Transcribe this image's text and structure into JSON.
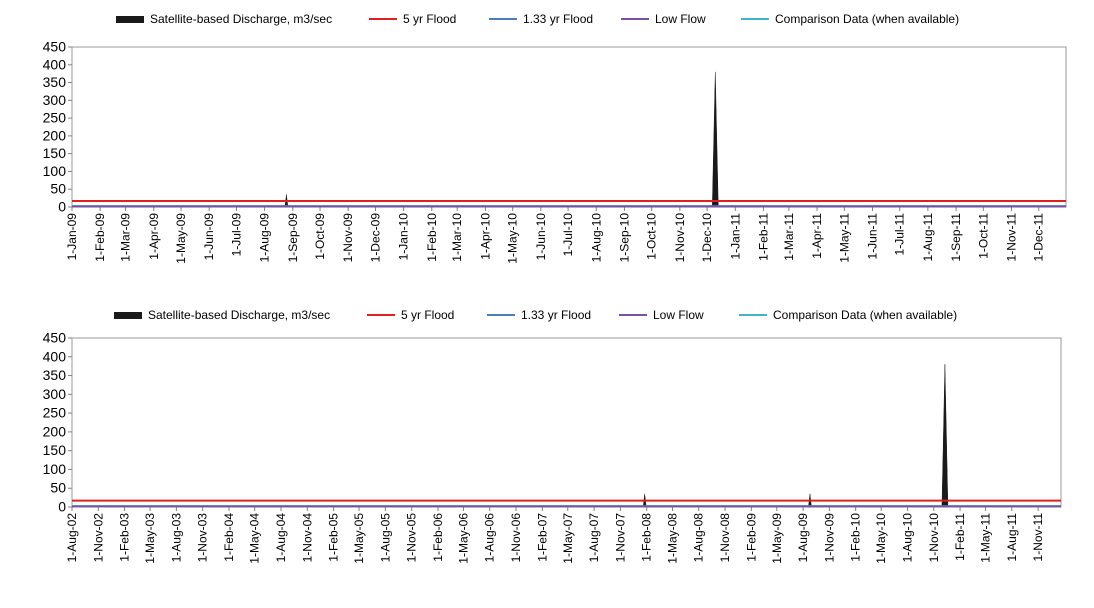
{
  "legend": {
    "discharge": "Satellite-based Discharge, m3/sec",
    "flood5": "5 yr Flood",
    "flood133": "1.33 yr Flood",
    "lowflow": "Low Flow",
    "comparison": "Comparison Data (when available)"
  },
  "colors": {
    "discharge": "#1a1a1a",
    "flood5": "#e0201c",
    "flood133": "#4a7ebb",
    "lowflow": "#7b4fa6",
    "comparison": "#3fb3d0"
  },
  "chart_data": [
    {
      "type": "area",
      "ylim": [
        0,
        450
      ],
      "yticks": [
        0,
        50,
        100,
        150,
        200,
        250,
        300,
        350,
        400,
        450
      ],
      "x_categories": [
        "1-Jan-09",
        "1-Feb-09",
        "1-Mar-09",
        "1-Apr-09",
        "1-May-09",
        "1-Jun-09",
        "1-Jul-09",
        "1-Aug-09",
        "1-Sep-09",
        "1-Oct-09",
        "1-Nov-09",
        "1-Dec-09",
        "1-Jan-10",
        "1-Feb-10",
        "1-Mar-10",
        "1-Apr-10",
        "1-May-10",
        "1-Jun-10",
        "1-Jul-10",
        "1-Aug-10",
        "1-Sep-10",
        "1-Oct-10",
        "1-Nov-10",
        "1-Dec-10",
        "1-Jan-11",
        "1-Feb-11",
        "1-Mar-11",
        "1-Apr-11",
        "1-May-11",
        "1-Jun-11",
        "1-Jul-11",
        "1-Aug-11",
        "1-Sep-11",
        "1-Oct-11",
        "1-Nov-11",
        "1-Dec-11"
      ],
      "x_range": [
        "1-Jan-09",
        "31-Dec-11"
      ],
      "series": [
        {
          "name": "Satellite-based Discharge, m3/sec",
          "points": [
            {
              "x": "25-Aug-09",
              "y": 35
            },
            {
              "x": "10-Dec-10",
              "y": 380
            }
          ]
        },
        {
          "name": "5 yr Flood",
          "value": 17
        },
        {
          "name": "1.33 yr Flood",
          "value": 3
        },
        {
          "name": "Low Flow",
          "value": 1
        }
      ]
    },
    {
      "type": "area",
      "ylim": [
        0,
        450
      ],
      "yticks": [
        0,
        50,
        100,
        150,
        200,
        250,
        300,
        350,
        400,
        450
      ],
      "x_categories": [
        "1-Aug-02",
        "1-Nov-02",
        "1-Feb-03",
        "1-May-03",
        "1-Aug-03",
        "1-Nov-03",
        "1-Feb-04",
        "1-May-04",
        "1-Aug-04",
        "1-Nov-04",
        "1-Feb-05",
        "1-May-05",
        "1-Aug-05",
        "1-Nov-05",
        "1-Feb-06",
        "1-May-06",
        "1-Aug-06",
        "1-Nov-06",
        "1-Feb-07",
        "1-May-07",
        "1-Aug-07",
        "1-Nov-07",
        "1-Feb-08",
        "1-May-08",
        "1-Aug-08",
        "1-Nov-08",
        "1-Feb-09",
        "1-May-09",
        "1-Aug-09",
        "1-Nov-09",
        "1-Feb-10",
        "1-May-10",
        "1-Aug-10",
        "1-Nov-10",
        "1-Feb-11",
        "1-May-11",
        "1-Aug-11",
        "1-Nov-11"
      ],
      "x_range": [
        "1-Aug-02",
        "20-Jan-12"
      ],
      "series": [
        {
          "name": "Satellite-based Discharge, m3/sec",
          "points": [
            {
              "x": "25-Jan-08",
              "y": 35
            },
            {
              "x": "25-Aug-09",
              "y": 35
            },
            {
              "x": "10-Dec-10",
              "y": 380
            }
          ]
        },
        {
          "name": "5 yr Flood",
          "value": 17
        },
        {
          "name": "1.33 yr Flood",
          "value": 3
        },
        {
          "name": "Low Flow",
          "value": 1
        }
      ]
    }
  ]
}
